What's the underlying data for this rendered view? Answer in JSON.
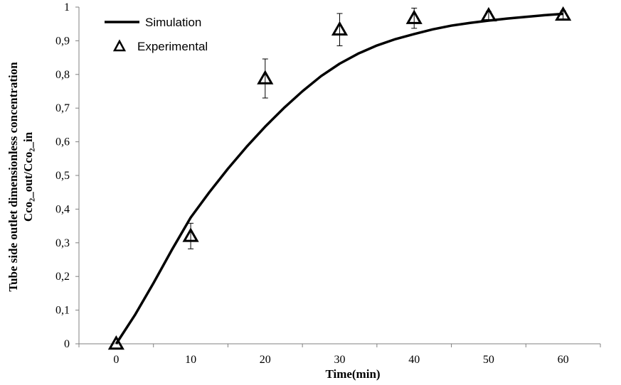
{
  "chart_data": {
    "type": "scatter",
    "xlabel": "Time(min)",
    "ylabel_line1": "Tube side outlet dimensionless concentration",
    "ylabel_line2": "Cco₂_out/Cco₂_in",
    "xlim": [
      -5,
      65
    ],
    "ylim": [
      0,
      1
    ],
    "x_ticks": [
      0,
      10,
      20,
      30,
      40,
      50,
      60
    ],
    "x_tick_labels": [
      "0",
      "10",
      "20",
      "30",
      "40",
      "50",
      "60"
    ],
    "y_ticks": [
      0,
      0.1,
      0.2,
      0.3,
      0.4,
      0.5,
      0.6,
      0.7,
      0.8,
      0.9,
      1
    ],
    "y_tick_labels": [
      "0",
      "0,1",
      "0,2",
      "0,3",
      "0,4",
      "0,5",
      "0,6",
      "0,7",
      "0,8",
      "0,9",
      "1"
    ],
    "grid": false,
    "legend_position": "top-left",
    "series": [
      {
        "name": "Simulation",
        "style": "line",
        "color": "#000000",
        "x": [
          0,
          2.5,
          5,
          7.5,
          10,
          12.5,
          15,
          17.5,
          20,
          22.5,
          25,
          27.5,
          30,
          32.5,
          35,
          37.5,
          40,
          42.5,
          45,
          47.5,
          50,
          52.5,
          55,
          57.5,
          60
        ],
        "y": [
          0,
          0.085,
          0.18,
          0.28,
          0.375,
          0.45,
          0.52,
          0.585,
          0.645,
          0.7,
          0.75,
          0.795,
          0.832,
          0.862,
          0.886,
          0.905,
          0.92,
          0.934,
          0.945,
          0.953,
          0.96,
          0.966,
          0.971,
          0.976,
          0.98
        ]
      },
      {
        "name": "Experimental",
        "style": "marker-triangle-open",
        "color": "#000000",
        "x": [
          0,
          10,
          20,
          30,
          40,
          50,
          60
        ],
        "y": [
          0,
          0.32,
          0.788,
          0.933,
          0.967,
          0.975,
          0.977
        ],
        "err": [
          0,
          0.038,
          0.058,
          0.048,
          0.03,
          0.012,
          0.012
        ]
      }
    ]
  }
}
